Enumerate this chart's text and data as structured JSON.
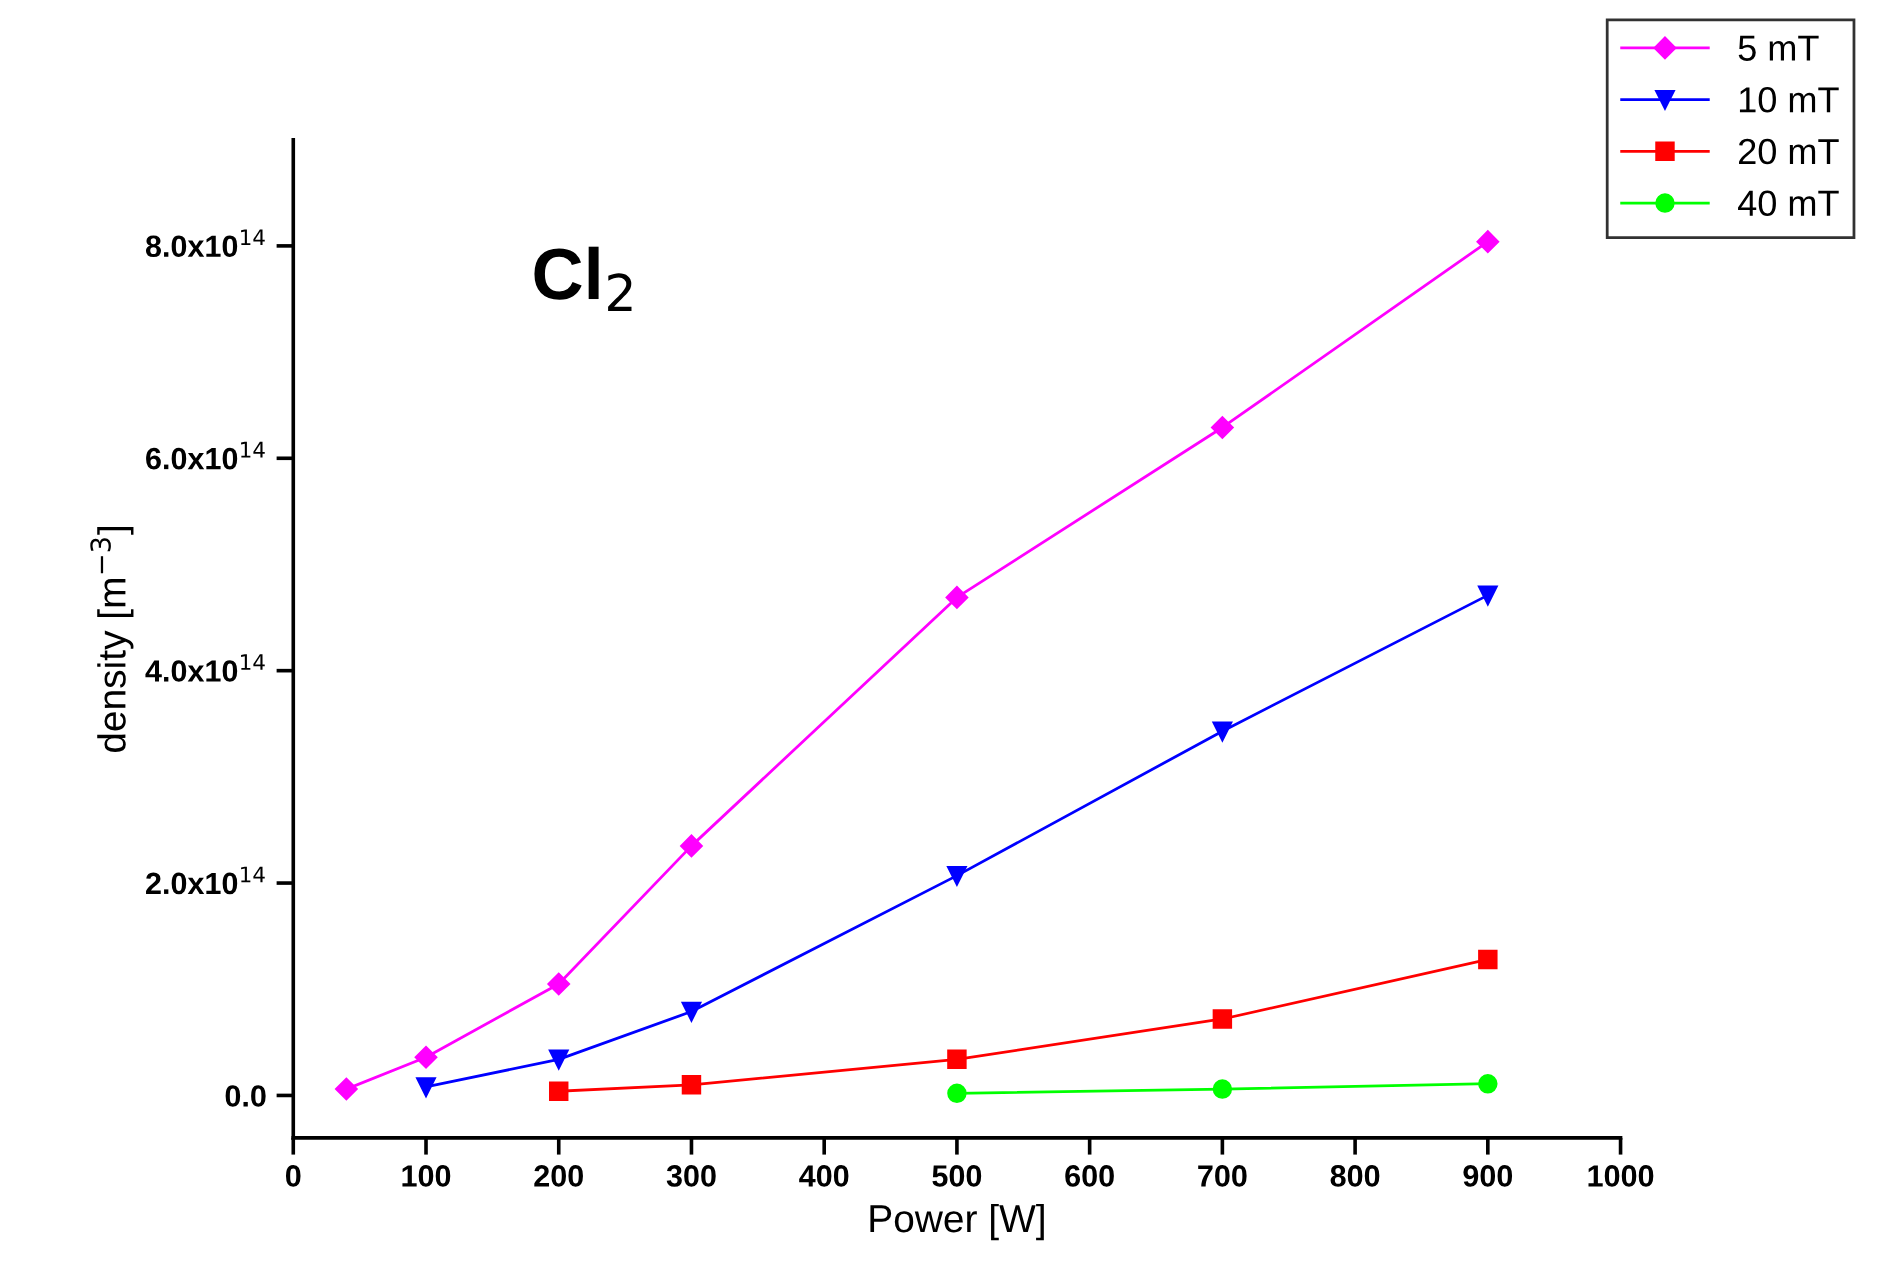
{
  "chart_data": {
    "type": "line",
    "title": "Cl$_{2}$",
    "xlabel": "Power [W]",
    "ylabel": "density [m$^{−3}$]",
    "xlim": [
      0,
      1000
    ],
    "xticks": [
      0,
      100,
      200,
      300,
      400,
      500,
      600,
      700,
      800,
      900,
      1000
    ],
    "ylim": [
      -40000000000000.0,
      900000000000000.0
    ],
    "yticks": [
      {
        "value": 0,
        "label": "0.0"
      },
      {
        "value": 200000000000000.0,
        "label": "2.0x10$^{14}$"
      },
      {
        "value": 400000000000000.0,
        "label": "4.0x10$^{14}$"
      },
      {
        "value": 600000000000000.0,
        "label": "6.0x10$^{14}$"
      },
      {
        "value": 800000000000000.0,
        "label": "8.0x10$^{14}$"
      }
    ],
    "grid": false,
    "legend": "top right",
    "series": [
      {
        "name": "5 mT",
        "color": "#ff00ff",
        "marker": "diamond",
        "x": [
          40,
          100,
          200,
          300,
          500,
          700,
          900
        ],
        "values": [
          6000000000000.0,
          36000000000000.0,
          105000000000000.0,
          235000000000000.0,
          469000000000000.0,
          629000000000000.0,
          804000000000000.0
        ]
      },
      {
        "name": "10 mT",
        "color": "#0000ff",
        "marker": "triangle",
        "x": [
          100,
          200,
          300,
          500,
          700,
          900
        ],
        "values": [
          8000000000000.0,
          34000000000000.0,
          79000000000000.0,
          207000000000000.0,
          343000000000000.0,
          471000000000000.0
        ]
      },
      {
        "name": "20 mT",
        "color": "#ff0000",
        "marker": "square",
        "x": [
          200,
          300,
          500,
          700,
          900
        ],
        "values": [
          4000000000000.0,
          10000000000000.0,
          34000000000000.0,
          72000000000000.0,
          128000000000000.0
        ]
      },
      {
        "name": "40 mT",
        "color": "#00ff00",
        "marker": "circle",
        "x": [
          500,
          700,
          900
        ],
        "values": [
          2000000000000.0,
          6000000000000.0,
          11000000000000.0
        ]
      }
    ]
  }
}
